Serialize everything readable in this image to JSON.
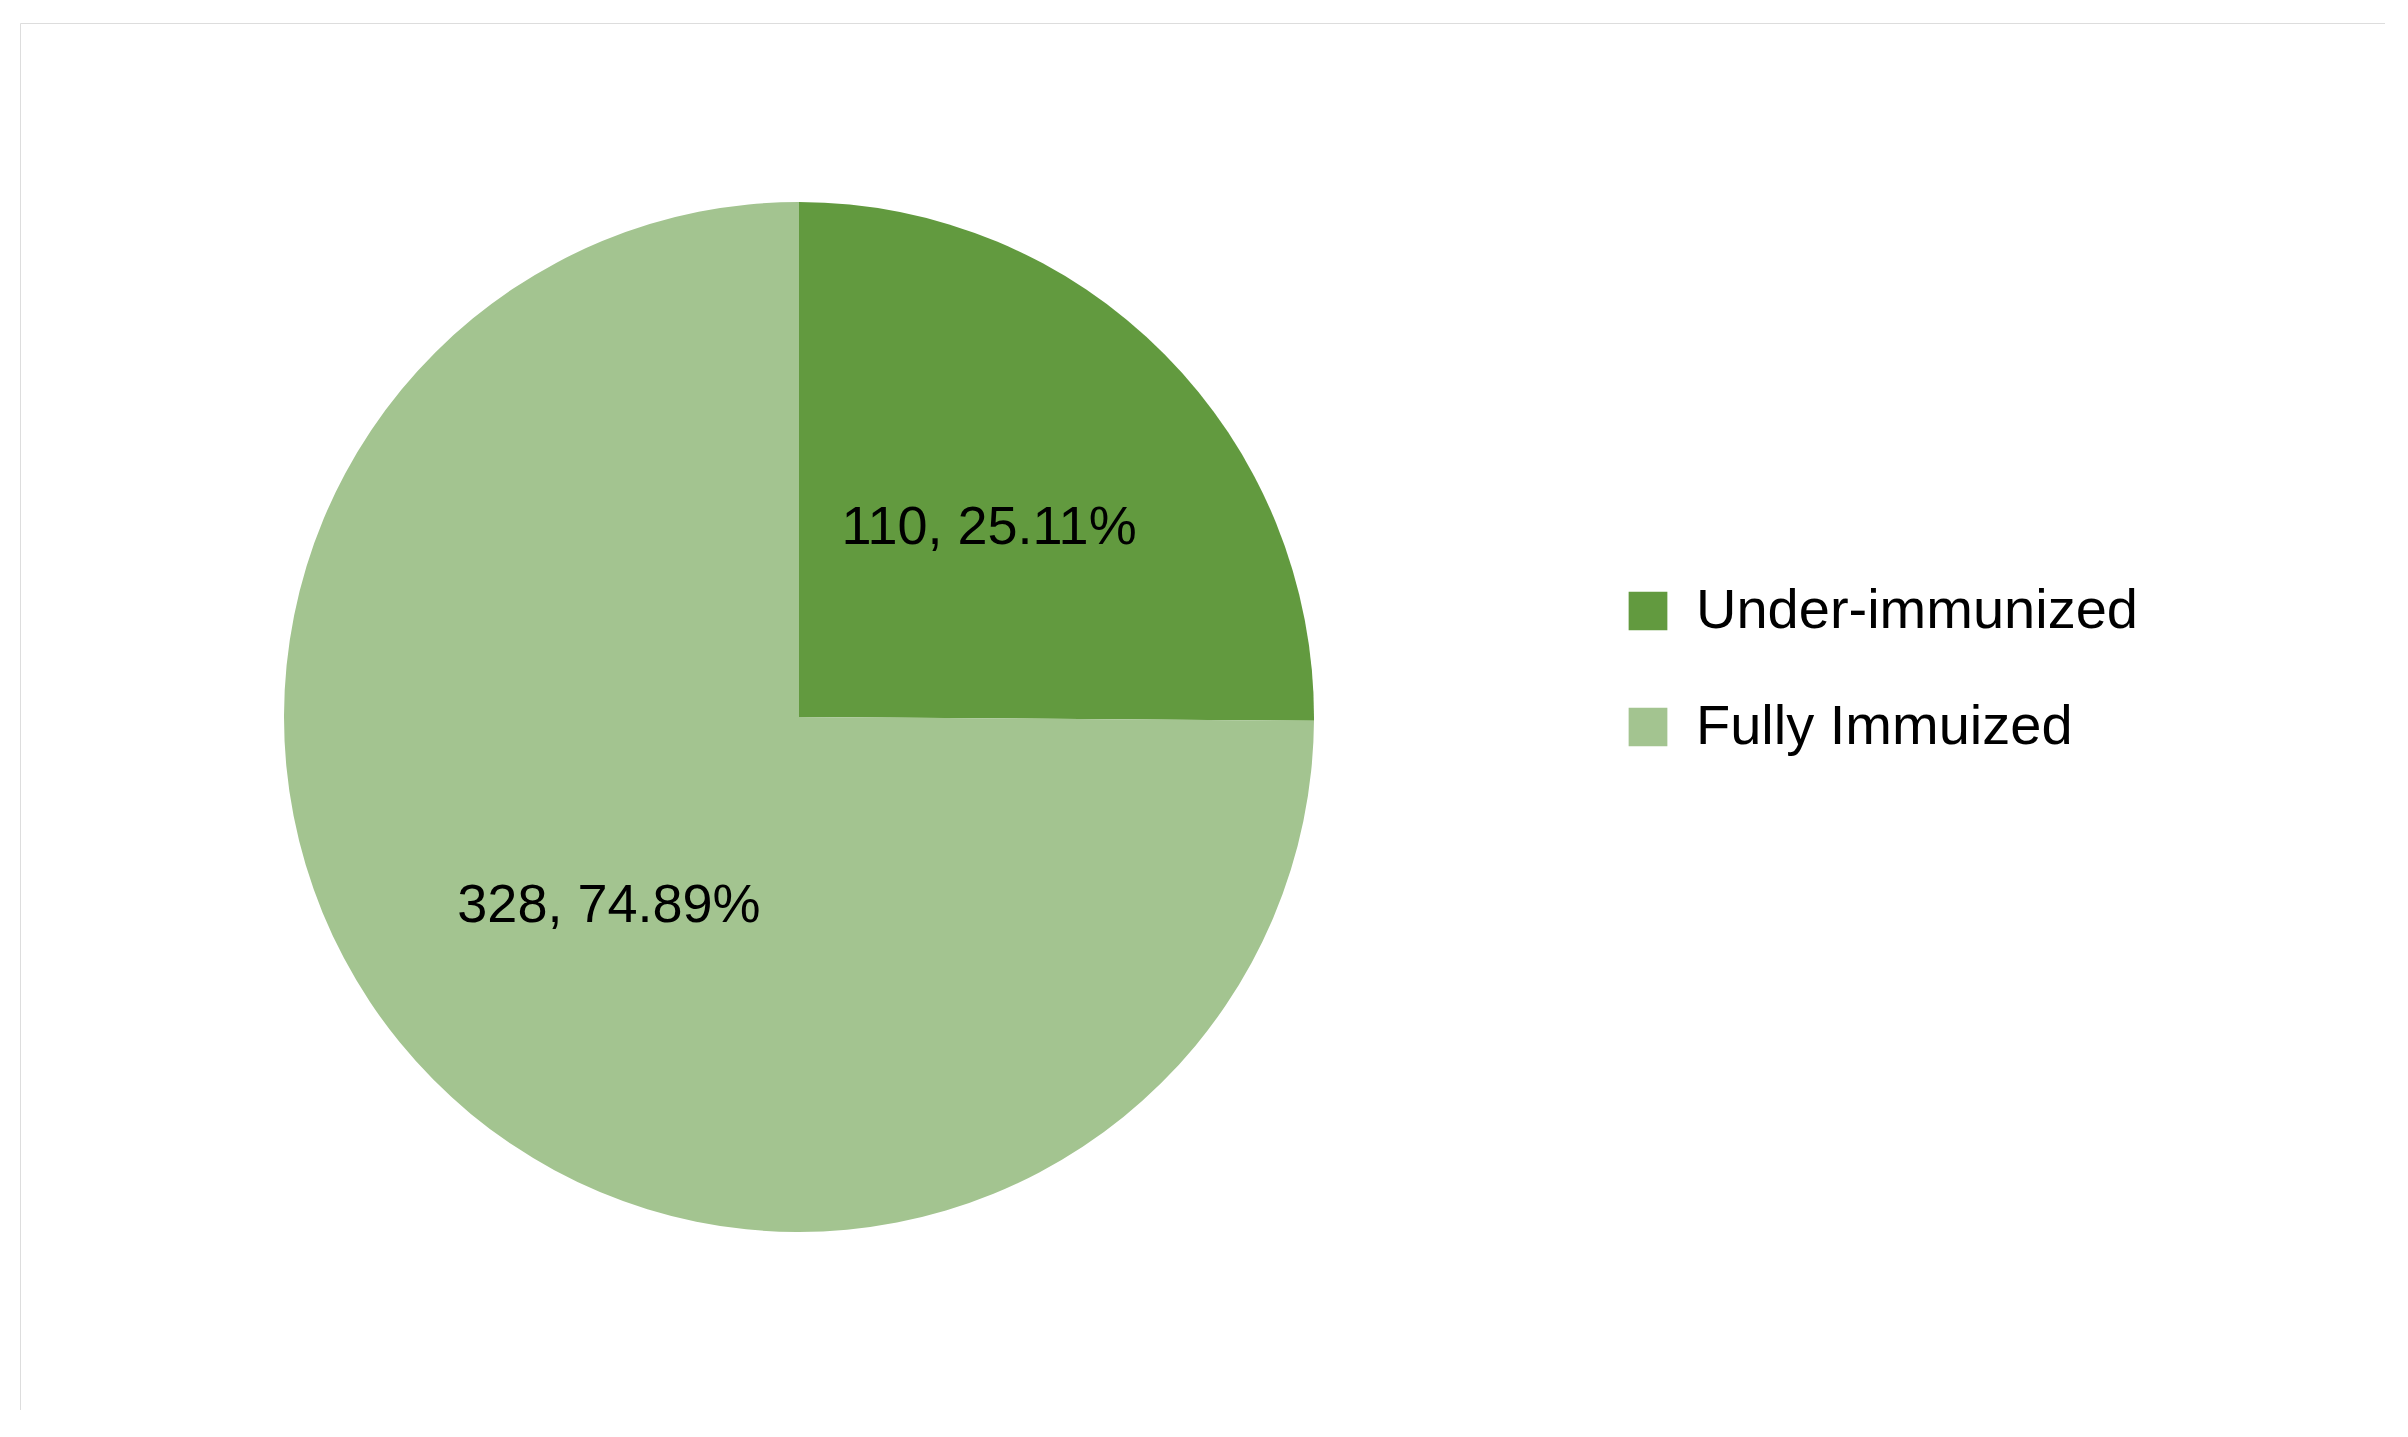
{
  "chart_data": {
    "type": "pie",
    "categories": [
      "Under-immunized",
      "Fully Immuized"
    ],
    "values": [
      110,
      328
    ],
    "colors": [
      "#629a3f",
      "#a3c490"
    ],
    "value_labels": [
      "110, 25.11%",
      "328, 74.89%"
    ],
    "legend": "right"
  }
}
